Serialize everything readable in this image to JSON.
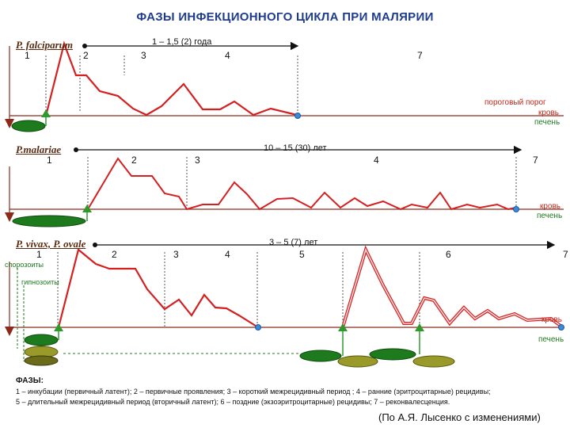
{
  "title": "ФАЗЫ ИНФЕКЦИОННОГО ЦИКЛА ПРИ МАЛЯРИИ",
  "panels": [
    {
      "species": "P. falciparum",
      "duration": "1 – 1,5 (2) года",
      "phases": [
        "1",
        "2",
        "3",
        "4",
        "7"
      ],
      "threshold_label": "пороговый порог",
      "blood_label": "кровь",
      "liver_label": "печень"
    },
    {
      "species": "P.malariae",
      "duration": "10 – 15 (30) лет",
      "phases": [
        "1",
        "2",
        "3",
        "4",
        "7"
      ],
      "blood_label": "кровь",
      "liver_label": "печень"
    },
    {
      "species": "P. vivax,  P. ovale",
      "duration": "3 – 5 (7) лет",
      "phases": [
        "1",
        "2",
        "3",
        "4",
        "5",
        "6",
        "7"
      ],
      "side_labels": [
        "спорозоиты",
        "гипнозоиты"
      ],
      "blood_label": "кровь",
      "liver_label": "печень"
    }
  ],
  "legend": {
    "heading": "ФАЗЫ:",
    "line1": "1 – инкубации (первичный латент);   2 – первичные проявления;    3 – короткий межрецидивный период ;   4 – ранние (эритроцитарные) рецидивы;",
    "line2": "5 – длительный межрецидивный  период (вторичный латент);    6 – поздние (экзоэритроцитарные) рецидивы;    7 – реконвалесценция."
  },
  "source": "(По А.Я. Лысенко с изменениями)",
  "colors": {
    "curve": "#d42020",
    "baseline": "#8b2a1a",
    "liver": "#1d7a1d",
    "liver_alt": "#6b6b1a",
    "arrow_green": "#2e9a2e",
    "end_dot": "#3a8ad8",
    "title": "#1f3c8c"
  }
}
